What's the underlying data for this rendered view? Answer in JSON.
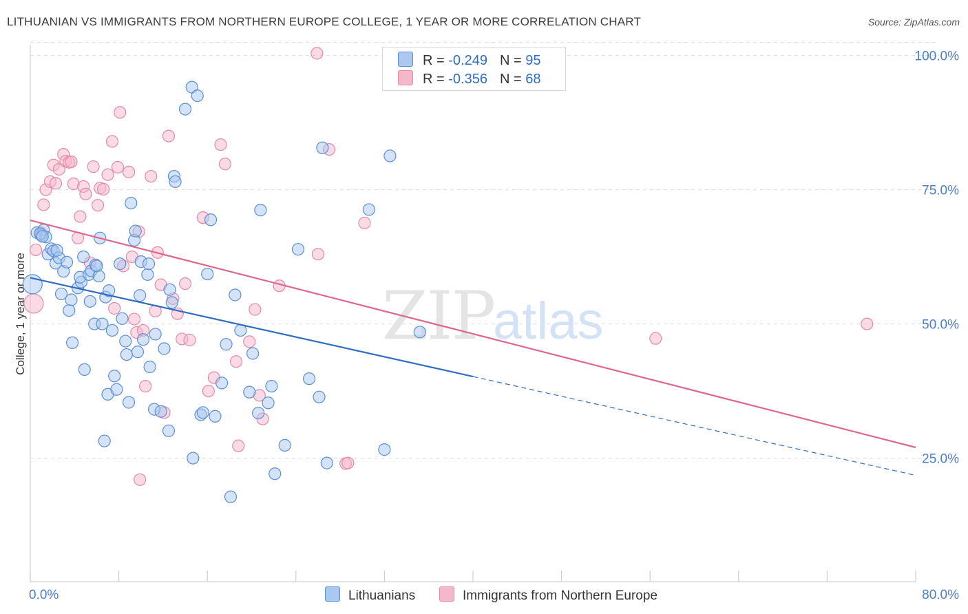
{
  "title": "LITHUANIAN VS IMMIGRANTS FROM NORTHERN EUROPE COLLEGE, 1 YEAR OR MORE CORRELATION CHART",
  "source": "Source: ZipAtlas.com",
  "watermark": {
    "zip": "ZIP",
    "atlas": "atlas"
  },
  "legend": {
    "rows": [
      {
        "r_label": "R = ",
        "r_value": "-0.249",
        "n_label": "N = ",
        "n_value": "95"
      },
      {
        "r_label": "R = ",
        "r_value": "-0.356",
        "n_label": "N = ",
        "n_value": "68"
      }
    ]
  },
  "colors": {
    "blue_fill": "#aac8f0",
    "blue_stroke": "#5b8fd6",
    "blue_line": "#2f6cc4",
    "pink_fill": "#f5b8cb",
    "pink_stroke": "#e58aa6",
    "pink_line": "#e06690",
    "grid": "#dcdcdc",
    "axis_text": "#4a7fcf"
  },
  "chart_data": {
    "type": "scatter",
    "title": "LITHUANIAN VS IMMIGRANTS FROM NORTHERN EUROPE COLLEGE, 1 YEAR OR MORE CORRELATION CHART",
    "xlabel": "",
    "ylabel": "College, 1 year or more",
    "xlim": [
      0,
      80
    ],
    "ylim": [
      2,
      102
    ],
    "x_tick_labels": [
      "0.0%",
      "80.0%"
    ],
    "y_ticks": [
      25,
      50,
      75,
      100
    ],
    "y_tick_labels": [
      "25.0%",
      "50.0%",
      "75.0%",
      "100.0%"
    ],
    "grid": true,
    "legend_position": "top-center",
    "series": [
      {
        "name": "Lithuanians",
        "color": "#aac8f0",
        "r": -0.249,
        "n": 95,
        "trend": {
          "x0": 0,
          "y0": 58.6,
          "x1": 40,
          "y1": 40.2,
          "dashed_to_x": 80,
          "dashed_to_y": 21.8
        },
        "points": [
          [
            0.6,
            67.0
          ],
          [
            1.0,
            66.5
          ],
          [
            1.2,
            67.5
          ],
          [
            1.4,
            66.2
          ],
          [
            1.6,
            63.0
          ],
          [
            1.9,
            64.0
          ],
          [
            2.1,
            63.6
          ],
          [
            2.3,
            61.3
          ],
          [
            2.6,
            62.3
          ],
          [
            3.0,
            59.8
          ],
          [
            3.3,
            61.5
          ],
          [
            2.8,
            55.6
          ],
          [
            3.5,
            52.5
          ],
          [
            3.7,
            54.5
          ],
          [
            3.8,
            46.5
          ],
          [
            4.3,
            56.7
          ],
          [
            4.6,
            57.8
          ],
          [
            4.5,
            58.7
          ],
          [
            4.8,
            62.5
          ],
          [
            4.9,
            41.5
          ],
          [
            5.3,
            59.2
          ],
          [
            5.4,
            54.2
          ],
          [
            5.5,
            59.9
          ],
          [
            5.8,
            50.0
          ],
          [
            5.9,
            61.0
          ],
          [
            6.2,
            58.9
          ],
          [
            6.3,
            66.0
          ],
          [
            6.5,
            50.0
          ],
          [
            6.7,
            28.2
          ],
          [
            6.8,
            55.0
          ],
          [
            7.0,
            36.9
          ],
          [
            7.1,
            56.2
          ],
          [
            7.4,
            48.8
          ],
          [
            7.6,
            40.3
          ],
          [
            7.8,
            37.8
          ],
          [
            8.1,
            61.2
          ],
          [
            8.3,
            51.0
          ],
          [
            8.6,
            46.8
          ],
          [
            8.7,
            44.3
          ],
          [
            8.9,
            35.4
          ],
          [
            9.1,
            72.5
          ],
          [
            9.4,
            65.6
          ],
          [
            9.5,
            67.3
          ],
          [
            9.7,
            44.8
          ],
          [
            9.9,
            55.3
          ],
          [
            10.0,
            61.6
          ],
          [
            10.2,
            47.1
          ],
          [
            10.6,
            59.2
          ],
          [
            10.7,
            61.2
          ],
          [
            10.8,
            42.0
          ],
          [
            11.2,
            34.1
          ],
          [
            11.3,
            48.1
          ],
          [
            11.8,
            33.7
          ],
          [
            12.1,
            45.4
          ],
          [
            12.5,
            30.1
          ],
          [
            12.6,
            56.4
          ],
          [
            12.8,
            54.0
          ],
          [
            13.0,
            77.5
          ],
          [
            13.1,
            76.5
          ],
          [
            14.0,
            90.0
          ],
          [
            14.6,
            94.1
          ],
          [
            14.7,
            25.0
          ],
          [
            15.1,
            92.5
          ],
          [
            15.4,
            33.1
          ],
          [
            15.6,
            33.5
          ],
          [
            16.0,
            59.3
          ],
          [
            16.3,
            69.4
          ],
          [
            16.7,
            32.8
          ],
          [
            17.3,
            39.0
          ],
          [
            17.7,
            46.2
          ],
          [
            18.1,
            17.8
          ],
          [
            18.5,
            55.4
          ],
          [
            19.0,
            48.8
          ],
          [
            19.8,
            37.3
          ],
          [
            20.1,
            44.5
          ],
          [
            20.6,
            33.4
          ],
          [
            20.8,
            71.2
          ],
          [
            21.5,
            35.3
          ],
          [
            21.8,
            38.4
          ],
          [
            22.1,
            22.1
          ],
          [
            23.0,
            27.4
          ],
          [
            24.2,
            63.9
          ],
          [
            25.2,
            39.8
          ],
          [
            26.1,
            36.4
          ],
          [
            26.8,
            24.1
          ],
          [
            26.4,
            82.8
          ],
          [
            30.6,
            71.3
          ],
          [
            32.0,
            26.6
          ],
          [
            32.5,
            81.3
          ],
          [
            35.2,
            48.5
          ],
          [
            0.2,
            57.4
          ],
          [
            0.9,
            66.8
          ],
          [
            2.4,
            63.7
          ],
          [
            6.0,
            60.8
          ],
          [
            1.1,
            66.3
          ]
        ]
      },
      {
        "name": "Immigrants from Northern Europe",
        "color": "#f5b8cb",
        "r": -0.356,
        "n": 68,
        "trend": {
          "x0": 0,
          "y0": 69.3,
          "x1": 80,
          "y1": 27.0
        },
        "points": [
          [
            0.3,
            53.8
          ],
          [
            0.5,
            63.8
          ],
          [
            0.9,
            67.0
          ],
          [
            1.2,
            72.2
          ],
          [
            1.4,
            75.0
          ],
          [
            1.8,
            76.5
          ],
          [
            2.1,
            79.6
          ],
          [
            2.3,
            76.2
          ],
          [
            2.6,
            78.8
          ],
          [
            3.0,
            81.6
          ],
          [
            3.2,
            80.3
          ],
          [
            3.5,
            80.1
          ],
          [
            3.7,
            80.2
          ],
          [
            3.9,
            76.1
          ],
          [
            4.3,
            66.0
          ],
          [
            4.5,
            70.0
          ],
          [
            4.8,
            75.6
          ],
          [
            5.0,
            74.2
          ],
          [
            5.4,
            61.4
          ],
          [
            5.7,
            79.3
          ],
          [
            6.1,
            72.1
          ],
          [
            6.3,
            75.3
          ],
          [
            6.6,
            75.1
          ],
          [
            7.0,
            77.8
          ],
          [
            7.4,
            84.0
          ],
          [
            7.6,
            52.9
          ],
          [
            7.9,
            79.2
          ],
          [
            8.1,
            89.4
          ],
          [
            8.4,
            60.8
          ],
          [
            8.9,
            78.3
          ],
          [
            9.2,
            62.5
          ],
          [
            9.4,
            50.9
          ],
          [
            9.6,
            48.4
          ],
          [
            9.8,
            67.2
          ],
          [
            10.2,
            48.8
          ],
          [
            10.4,
            38.4
          ],
          [
            10.9,
            77.5
          ],
          [
            11.3,
            52.4
          ],
          [
            11.5,
            63.3
          ],
          [
            11.8,
            57.3
          ],
          [
            12.1,
            33.5
          ],
          [
            12.5,
            85.0
          ],
          [
            12.9,
            54.7
          ],
          [
            13.3,
            51.9
          ],
          [
            13.7,
            47.2
          ],
          [
            14.0,
            57.5
          ],
          [
            14.4,
            47.0
          ],
          [
            15.6,
            69.8
          ],
          [
            16.1,
            37.5
          ],
          [
            16.6,
            40.0
          ],
          [
            17.2,
            83.4
          ],
          [
            17.6,
            79.8
          ],
          [
            18.6,
            43.0
          ],
          [
            18.8,
            27.3
          ],
          [
            19.8,
            46.7
          ],
          [
            20.3,
            52.7
          ],
          [
            20.7,
            36.7
          ],
          [
            21.0,
            32.3
          ],
          [
            22.5,
            57.1
          ],
          [
            26.0,
            63.0
          ],
          [
            27.0,
            82.5
          ],
          [
            28.5,
            24.0
          ],
          [
            28.7,
            24.1
          ],
          [
            30.2,
            68.8
          ],
          [
            9.9,
            21.0
          ],
          [
            25.9,
            100.4
          ],
          [
            56.5,
            47.3
          ],
          [
            75.6,
            50.0
          ]
        ]
      }
    ]
  },
  "bottom_legend": [
    {
      "label": "Lithuanians"
    },
    {
      "label": "Immigrants from Northern Europe"
    }
  ]
}
